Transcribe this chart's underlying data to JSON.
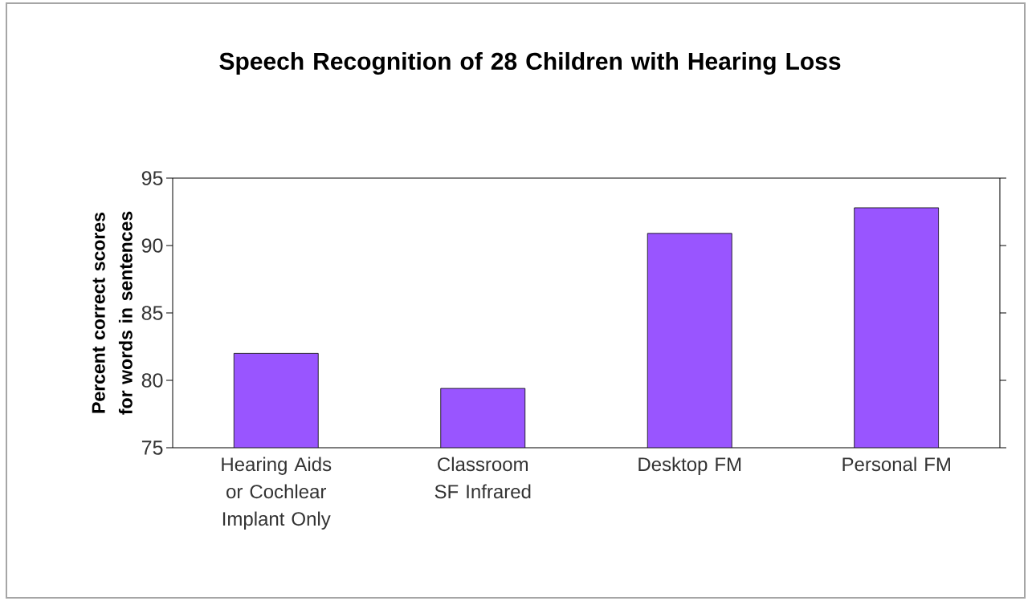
{
  "chart_data": {
    "type": "bar",
    "title": "Speech Recognition of 28 Children with Hearing Loss",
    "ylabel": "Percent correct scores for words in sentences",
    "categories": [
      "Hearing Aids or Cochlear Implant Only",
      "Classroom SF Infrared",
      "Desktop FM",
      "Personal FM"
    ],
    "values": [
      82.0,
      79.4,
      90.9,
      92.8
    ],
    "color": "#9955ff",
    "ylim": [
      75,
      95
    ],
    "yticks": [
      75,
      80,
      85,
      90,
      95
    ],
    "grid": false
  }
}
